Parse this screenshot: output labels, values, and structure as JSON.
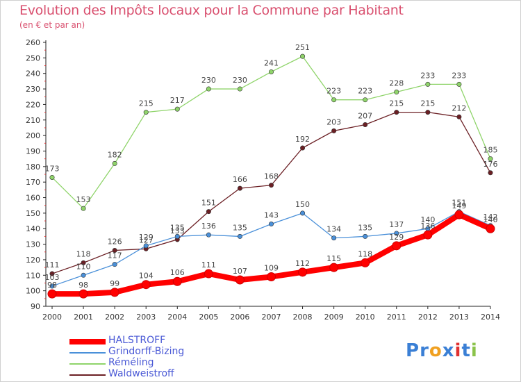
{
  "title": "Evolution des Impôts locaux pour la Commune par Habitant",
  "subtitle": "(en € et par an)",
  "logo": {
    "letters": [
      {
        "ch": "P",
        "color": "#3a7fd5"
      },
      {
        "ch": "r",
        "color": "#3a7fd5"
      },
      {
        "ch": "o",
        "color": "#f0a020"
      },
      {
        "ch": "x",
        "color": "#3a7fd5"
      },
      {
        "ch": "i",
        "color": "#e03030"
      },
      {
        "ch": "t",
        "color": "#3a7fd5"
      },
      {
        "ch": "i",
        "color": "#8bc34a"
      }
    ]
  },
  "chart_data": {
    "type": "line",
    "title": "Evolution des Impôts locaux pour la Commune par Habitant",
    "subtitle": "(en € et par an)",
    "x": [
      "2000",
      "2001",
      "2002",
      "2003",
      "2004",
      "2005",
      "2006",
      "2007",
      "2008",
      "2009",
      "2010",
      "2011",
      "2012",
      "2013",
      "2014"
    ],
    "ylim": [
      90,
      260
    ],
    "yticks": [
      90,
      100,
      110,
      120,
      130,
      140,
      150,
      160,
      170,
      180,
      190,
      200,
      210,
      220,
      230,
      240,
      250,
      260
    ],
    "grid": false,
    "legend_position": "bottom-left",
    "series": [
      {
        "name": "Réméling",
        "color": "#8fd46a",
        "values": [
          173,
          153,
          182,
          215,
          217,
          230,
          230,
          241,
          251,
          223,
          223,
          228,
          233,
          233,
          185
        ],
        "labels": [
          "173",
          "153",
          "182",
          "215",
          "217",
          "230",
          "230",
          "241",
          "251",
          "223",
          "223",
          "228",
          "233",
          "233",
          "185"
        ]
      },
      {
        "name": "Waldweistroff",
        "color": "#6b1f24",
        "values": [
          111,
          118,
          126,
          127,
          133,
          151,
          166,
          168,
          192,
          203,
          207,
          215,
          215,
          212,
          176
        ],
        "labels": [
          "111",
          "118",
          "126",
          "127",
          "133",
          "151",
          "166",
          "168",
          "192",
          "203",
          "207",
          "215",
          "215",
          "212",
          "176"
        ]
      },
      {
        "name": "Grindorff-Bizing",
        "color": "#4a90d9",
        "values": [
          103,
          110,
          117,
          129,
          135,
          136,
          135,
          143,
          150,
          134,
          135,
          137,
          140,
          151,
          142
        ],
        "labels": [
          "103",
          "110",
          "117",
          "129",
          "135",
          "136",
          "135",
          "143",
          "150",
          "134",
          "135",
          "137",
          "140",
          "151",
          "142"
        ]
      },
      {
        "name": "HALSTROFF",
        "color": "#ff0000",
        "values": [
          98,
          98,
          99,
          104,
          106,
          111,
          107,
          109,
          112,
          115,
          118,
          129,
          136,
          149,
          140
        ],
        "labels": [
          "98",
          "98",
          "99",
          "104",
          "106",
          "111",
          "107",
          "109",
          "112",
          "115",
          "118",
          "129",
          "136",
          "149",
          "140"
        ]
      }
    ]
  }
}
